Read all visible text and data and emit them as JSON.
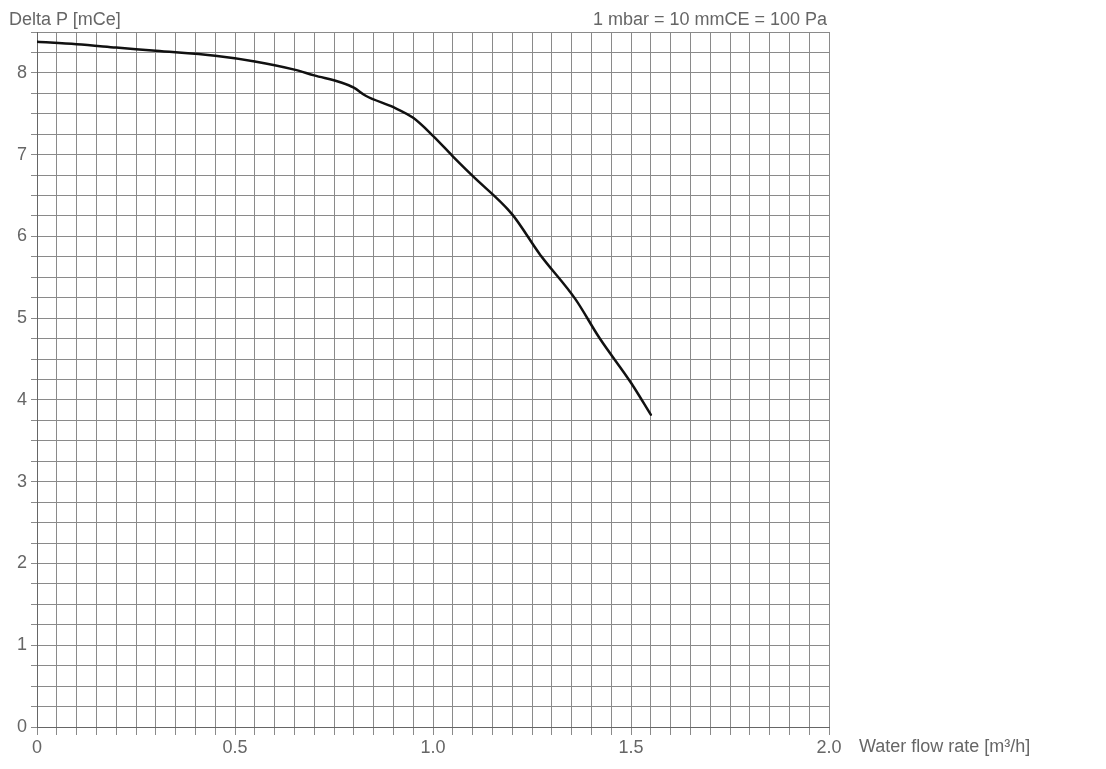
{
  "chart_data": {
    "type": "line",
    "xlabel": "Water flow rate [m³/h]",
    "ylabel": "Delta P [mCe]",
    "annotations": [
      "1 mbar = 10 mmCE = 100 Pa"
    ],
    "x": [
      0,
      0.1,
      0.2,
      0.3,
      0.45,
      0.55,
      0.65,
      0.7,
      0.77,
      0.8,
      0.83,
      0.9,
      0.95,
      1.0,
      1.05,
      1.1,
      1.2,
      1.27,
      1.36,
      1.42,
      1.5,
      1.55
    ],
    "series": [
      {
        "color": "#111111",
        "values": [
          8.38,
          8.35,
          8.31,
          8.27,
          8.21,
          8.14,
          8.04,
          7.97,
          7.88,
          7.82,
          7.72,
          7.58,
          7.45,
          7.23,
          6.98,
          6.74,
          6.27,
          5.78,
          5.23,
          4.76,
          4.21,
          3.82
        ]
      }
    ],
    "xlim": [
      0,
      2
    ],
    "ylim": [
      0,
      8.5
    ],
    "xticks": [
      0,
      {
        "value": 0.05,
        "label": null
      },
      {
        "value": 0.1,
        "label": null
      },
      {
        "value": 0.15,
        "label": null
      },
      {
        "value": 0.2,
        "label": null
      },
      {
        "value": 0.25,
        "label": null
      },
      {
        "value": 0.3,
        "label": null
      },
      {
        "value": 0.35,
        "label": null
      },
      {
        "value": 0.4,
        "label": null
      },
      {
        "value": 0.45,
        "label": null
      },
      0.5,
      {
        "value": 0.55,
        "label": null
      },
      {
        "value": 0.6,
        "label": null
      },
      {
        "value": 0.65,
        "label": null
      },
      {
        "value": 0.7,
        "label": null
      },
      {
        "value": 0.75,
        "label": null
      },
      {
        "value": 0.8,
        "label": null
      },
      {
        "value": 0.85,
        "label": null
      },
      {
        "value": 0.9,
        "label": null
      },
      {
        "value": 0.95,
        "label": null
      },
      {
        "value": 1,
        "label": "1.0"
      },
      {
        "value": 1.05,
        "label": null
      },
      {
        "value": 1.1,
        "label": null
      },
      {
        "value": 1.15,
        "label": null
      },
      {
        "value": 1.2,
        "label": null
      },
      {
        "value": 1.25,
        "label": null
      },
      {
        "value": 1.3,
        "label": null
      },
      {
        "value": 1.35,
        "label": null
      },
      {
        "value": 1.4,
        "label": null
      },
      {
        "value": 1.45,
        "label": null
      },
      1.5,
      {
        "value": 1.55,
        "label": null
      },
      {
        "value": 1.6,
        "label": null
      },
      {
        "value": 1.65,
        "label": null
      },
      {
        "value": 1.7,
        "label": null
      },
      {
        "value": 1.75,
        "label": null
      },
      {
        "value": 1.8,
        "label": null
      },
      {
        "value": 1.85,
        "label": null
      },
      {
        "value": 1.9,
        "label": null
      },
      {
        "value": 1.95,
        "label": null
      },
      {
        "value": 2,
        "label": "2.0"
      }
    ],
    "yticks": [
      0,
      {
        "value": 0.25,
        "label": null
      },
      {
        "value": 0.5,
        "label": null
      },
      {
        "value": 0.75,
        "label": null
      },
      1,
      {
        "value": 1.25,
        "label": null
      },
      {
        "value": 1.5,
        "label": null
      },
      {
        "value": 1.75,
        "label": null
      },
      2,
      {
        "value": 2.25,
        "label": null
      },
      {
        "value": 2.5,
        "label": null
      },
      {
        "value": 2.75,
        "label": null
      },
      3,
      {
        "value": 3.25,
        "label": null
      },
      {
        "value": 3.5,
        "label": null
      },
      {
        "value": 3.75,
        "label": null
      },
      4,
      {
        "value": 4.25,
        "label": null
      },
      {
        "value": 4.5,
        "label": null
      },
      {
        "value": 4.75,
        "label": null
      },
      5,
      {
        "value": 5.25,
        "label": null
      },
      {
        "value": 5.5,
        "label": null
      },
      {
        "value": 5.75,
        "label": null
      },
      6,
      {
        "value": 6.25,
        "label": null
      },
      {
        "value": 6.5,
        "label": null
      },
      {
        "value": 6.75,
        "label": null
      },
      7,
      {
        "value": 7.25,
        "label": null
      },
      {
        "value": 7.5,
        "label": null
      },
      {
        "value": 7.75,
        "label": null
      },
      8,
      {
        "value": 8.25,
        "label": null
      },
      {
        "value": 8.5,
        "label": null
      }
    ],
    "grid": true,
    "legend": false,
    "marker": "none",
    "line_style": "solid"
  }
}
